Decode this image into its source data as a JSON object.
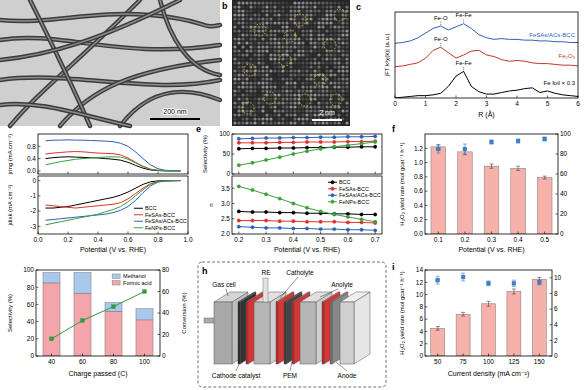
{
  "images": [
    {
      "scale_bar": "200 nm"
    },
    {
      "title": "b",
      "scale_bar": "2 nm"
    }
  ],
  "diagram": {
    "title": "h",
    "labels": [
      "Gas cell",
      "RE",
      "Catholyte",
      "PEM",
      "Anolyte",
      "Cathode catalyst",
      "Anode"
    ]
  },
  "chart_data": [
    {
      "type": "line",
      "title": "c",
      "xlabel": "R (Å)",
      "ylabel": "|FT k³χ(k)| (a.u.)",
      "x": [
        0,
        0.25,
        0.5,
        0.75,
        1,
        1.25,
        1.5,
        1.75,
        2,
        2.25,
        2.5,
        2.75,
        3,
        3.25,
        3.5,
        3.75,
        4,
        4.25,
        4.5,
        4.75,
        5,
        5.25,
        5.5,
        5.75,
        6
      ],
      "xlim": [
        0,
        6
      ],
      "xticks": [
        0,
        1,
        2,
        3,
        4,
        5,
        6
      ],
      "ylim": [
        0,
        11
      ],
      "tick_labels": "x",
      "series": [
        {
          "name": "FeSAs/ACs-BCC",
          "color": "#2e5fb8",
          "values": [
            7.0,
            7.1,
            7.3,
            7.7,
            8.3,
            8.9,
            9.2,
            8.7,
            9.1,
            9.5,
            8.9,
            8.1,
            7.7,
            7.5,
            7.6,
            7.5,
            7.5,
            7.4,
            7.4,
            7.3,
            7.3,
            7.2,
            7.2,
            7.1,
            7.1
          ]
        },
        {
          "name": "Fe₂O₃",
          "color": "#c0392b",
          "values": [
            4.0,
            4.1,
            4.3,
            4.5,
            5.1,
            6.1,
            6.5,
            5.8,
            5.1,
            5.5,
            6.0,
            6.1,
            5.5,
            5.3,
            4.9,
            4.7,
            4.8,
            4.7,
            4.5,
            4.4,
            4.4,
            4.3,
            4.2,
            4.2,
            4.1
          ]
        },
        {
          "name": "Fe foil × 0.3",
          "color": "#000000",
          "values": [
            0,
            0.1,
            0.2,
            0.3,
            0.3,
            0.4,
            0.6,
            1.5,
            2.8,
            3.4,
            1.5,
            0.8,
            0.5,
            0.5,
            0.7,
            0.9,
            1.0,
            1.2,
            1.3,
            0.7,
            0.9,
            0.6,
            0.4,
            0.3,
            0.2
          ]
        }
      ],
      "annotations": [
        {
          "text": "Fe-O",
          "x": 1.5,
          "y": 9.2
        },
        {
          "text": "Fe-Fe",
          "x": 2.25,
          "y": 9.5
        },
        {
          "text": "Fe-O",
          "x": 1.5,
          "y": 6.5
        },
        {
          "text": "Fe-Fe",
          "x": 2.25,
          "y": 3.4
        }
      ]
    },
    {
      "type": "line",
      "ylabel": "jring (mA cm⁻²)",
      "x": [
        0.05,
        0.1,
        0.15,
        0.2,
        0.25,
        0.3,
        0.35,
        0.4,
        0.45,
        0.5,
        0.55,
        0.6,
        0.65,
        0.7,
        0.75,
        0.8,
        0.85,
        0.9,
        0.95
      ],
      "xlim": [
        0,
        1
      ],
      "xticks": [
        0,
        0.2,
        0.4,
        0.6,
        0.8,
        1
      ],
      "ylim": [
        -0.1,
        1.2
      ],
      "yticks": [
        {
          "value": 0,
          "label": "0.0"
        },
        0.4,
        0.8
      ],
      "tick_labels": "y",
      "series": [
        {
          "color": "#000000",
          "values": [
            0.4,
            0.43,
            0.45,
            0.46,
            0.45,
            0.44,
            0.43,
            0.42,
            0.4,
            0.38,
            0.35,
            0.28,
            0.18,
            0.09,
            0.03,
            0.01,
            0,
            0,
            0
          ]
        },
        {
          "color": "#e0302a",
          "values": [
            0.55,
            0.58,
            0.6,
            0.62,
            0.63,
            0.62,
            0.6,
            0.58,
            0.57,
            0.56,
            0.52,
            0.42,
            0.28,
            0.15,
            0.06,
            0.02,
            0.01,
            0.01,
            0.01
          ]
        },
        {
          "color": "#2e5fb8",
          "values": [
            0.98,
            1.0,
            1.0,
            1.01,
            1.0,
            1.0,
            0.99,
            0.98,
            0.97,
            0.95,
            0.9,
            0.8,
            0.62,
            0.4,
            0.2,
            0.07,
            0.02,
            0.01,
            0.01
          ]
        },
        {
          "color": "#3aa03a",
          "values": [
            0.2,
            0.25,
            0.3,
            0.34,
            0.38,
            0.4,
            0.42,
            0.44,
            0.45,
            0.46,
            0.45,
            0.38,
            0.26,
            0.14,
            0.05,
            0.02,
            0.01,
            0,
            0
          ]
        }
      ]
    },
    {
      "type": "line",
      "xlabel": "Potential (V vs. RHE)",
      "ylabel": "jdisk (mA cm⁻²)",
      "x": [
        0.05,
        0.1,
        0.15,
        0.2,
        0.25,
        0.3,
        0.35,
        0.4,
        0.45,
        0.5,
        0.55,
        0.6,
        0.65,
        0.7,
        0.75,
        0.8,
        0.85,
        0.9,
        0.95
      ],
      "xlim": [
        0,
        1
      ],
      "xticks": [
        {
          "value": 0,
          "label": "0.0"
        },
        0.2,
        0.4,
        0.6,
        0.8,
        {
          "value": 1,
          "label": "1.0"
        }
      ],
      "ylim": [
        -3.5,
        0.3
      ],
      "yticks": [
        -3,
        -2,
        -1,
        0
      ],
      "legend": "lower right",
      "series": [
        {
          "name": "BCC",
          "color": "#000000",
          "values": [
            -1.8,
            -1.8,
            -1.75,
            -1.7,
            -1.6,
            -1.5,
            -1.4,
            -1.3,
            -1.2,
            -1.1,
            -0.95,
            -0.75,
            -0.5,
            -0.25,
            -0.08,
            -0.02,
            -0.01,
            0,
            0
          ]
        },
        {
          "name": "FeSAs-BCC",
          "color": "#e0302a",
          "values": [
            -1.6,
            -1.65,
            -1.7,
            -1.75,
            -1.8,
            -1.75,
            -1.7,
            -1.65,
            -1.6,
            -1.55,
            -1.45,
            -1.2,
            -0.85,
            -0.5,
            -0.2,
            -0.06,
            -0.02,
            -0.01,
            0
          ]
        },
        {
          "name": "FeSAs/ACs-BCC",
          "color": "#2e5fb8",
          "values": [
            -2.6,
            -2.55,
            -2.5,
            -2.45,
            -2.4,
            -2.35,
            -2.3,
            -2.25,
            -2.2,
            -2.1,
            -1.95,
            -1.7,
            -1.3,
            -0.8,
            -0.35,
            -0.1,
            -0.03,
            -0.01,
            0
          ]
        },
        {
          "name": "FeNPs-BCC",
          "color": "#3aa03a",
          "values": [
            -2.9,
            -2.8,
            -2.7,
            -2.6,
            -2.5,
            -2.4,
            -2.3,
            -2.2,
            -2.05,
            -1.9,
            -1.7,
            -1.4,
            -1.0,
            -0.6,
            -0.25,
            -0.08,
            -0.02,
            -0.01,
            0
          ]
        }
      ]
    },
    {
      "type": "line",
      "title": "e",
      "ylabel": "Selectivity (%)",
      "marker": "circle",
      "x": [
        0.2,
        0.25,
        0.3,
        0.35,
        0.4,
        0.45,
        0.5,
        0.55,
        0.6,
        0.65,
        0.7
      ],
      "xlim": [
        0.175,
        0.725
      ],
      "xticks": [
        0.2,
        0.3,
        0.4,
        0.5,
        0.6,
        0.7
      ],
      "ylim": [
        0,
        100
      ],
      "yticks": [
        0,
        50,
        100
      ],
      "tick_labels": "y",
      "series": [
        {
          "color": "#000000",
          "values": [
            63,
            64,
            64,
            65,
            65,
            66,
            66,
            67,
            67,
            68,
            68
          ]
        },
        {
          "color": "#e0302a",
          "values": [
            78,
            78,
            78,
            79,
            79,
            80,
            80,
            80,
            81,
            81,
            82
          ]
        },
        {
          "color": "#2e5fb8",
          "values": [
            88,
            89,
            90,
            90,
            91,
            91,
            92,
            92,
            93,
            93,
            94
          ]
        },
        {
          "color": "#3aa03a",
          "values": [
            22,
            28,
            35,
            42,
            50,
            57,
            63,
            68,
            72,
            76,
            80
          ]
        }
      ]
    },
    {
      "type": "line",
      "xlabel": "Potential (V vs. RHE)",
      "ylabel": "n",
      "marker": "circle",
      "x": [
        0.2,
        0.25,
        0.3,
        0.35,
        0.4,
        0.45,
        0.5,
        0.55,
        0.6,
        0.65,
        0.7
      ],
      "xlim": [
        0.175,
        0.725
      ],
      "xticks": [
        0.2,
        0.3,
        0.4,
        0.5,
        0.6,
        0.7
      ],
      "ylim": [
        2.0,
        3.9
      ],
      "yticks": [
        {
          "value": 2,
          "label": "2.0"
        },
        2.5,
        {
          "value": 3,
          "label": "3.0"
        },
        3.5
      ],
      "legend": "upper right",
      "series": [
        {
          "name": "BCC",
          "color": "#000000",
          "values": [
            2.74,
            2.72,
            2.72,
            2.7,
            2.7,
            2.68,
            2.68,
            2.66,
            2.66,
            2.64,
            2.64
          ]
        },
        {
          "name": "FeSAs-BCC",
          "color": "#e0302a",
          "values": [
            2.44,
            2.44,
            2.44,
            2.42,
            2.42,
            2.4,
            2.4,
            2.4,
            2.38,
            2.38,
            2.36
          ]
        },
        {
          "name": "FeSAs/ACs-BCC",
          "color": "#2e5fb8",
          "values": [
            2.24,
            2.22,
            2.2,
            2.2,
            2.18,
            2.18,
            2.16,
            2.16,
            2.14,
            2.14,
            2.12
          ]
        },
        {
          "name": "FeNPs-BCC",
          "color": "#3aa03a",
          "values": [
            3.56,
            3.44,
            3.3,
            3.16,
            3.0,
            2.86,
            2.74,
            2.64,
            2.56,
            2.48,
            2.4
          ]
        }
      ]
    },
    {
      "type": "bar",
      "title": "f",
      "xlabel": "Potential (V vs. RHE)",
      "ylabel": "H₂O₂ yield rate (mol gcat⁻¹ h⁻¹)",
      "categories": [
        0.1,
        0.2,
        0.3,
        0.4,
        0.5
      ],
      "ylim": [
        0,
        1.4
      ],
      "yticks": [
        {
          "value": 0,
          "label": "0.0"
        },
        0.2,
        0.4,
        0.6,
        0.8,
        {
          "value": 1,
          "label": "1.0"
        },
        1.2
      ],
      "y2lim": [
        0,
        100
      ],
      "y2ticks": [
        0,
        20,
        40,
        60,
        80,
        100
      ],
      "series": [
        {
          "type": "bar",
          "color": "#f5b1aa",
          "values": [
            1.22,
            1.15,
            0.95,
            0.92,
            0.79
          ],
          "errors": [
            0.03,
            0.04,
            0.03,
            0.03,
            0.02
          ]
        },
        {
          "type": "scatter",
          "axis": "y2",
          "color": "#3d7fc4",
          "marker": "square",
          "values": [
            85,
            85,
            92,
            93,
            95
          ],
          "errors": [
            4,
            5,
            2,
            2,
            2
          ]
        }
      ]
    },
    {
      "type": "bar",
      "xlabel": "Charge passed (C)",
      "ylabel": "Selectivity (%)",
      "y2label": "Conversion (%)",
      "categories": [
        40,
        60,
        80,
        100
      ],
      "ylim": [
        0,
        100
      ],
      "yticks": [
        0,
        20,
        40,
        60,
        80,
        100
      ],
      "y2lim": [
        0,
        80
      ],
      "y2ticks": [
        0,
        20,
        40,
        60,
        80
      ],
      "stacked": true,
      "legend": "upper right",
      "series": [
        {
          "name": "Formic acid",
          "type": "bar",
          "color": "#f3a5ab",
          "values": [
            85,
            73,
            52,
            42
          ]
        },
        {
          "name": "Methanol",
          "type": "bar",
          "color": "#a9c8ec",
          "values": [
            12,
            24,
            10,
            13
          ]
        },
        {
          "type": "line",
          "axis": "y2",
          "color": "#2f9a3f",
          "marker": "square",
          "values": [
            16,
            33,
            46,
            60
          ]
        }
      ]
    },
    {
      "type": "bar",
      "title": "i",
      "xlabel": "Current density (mA cm⁻²)",
      "ylabel": "H₂O₂ yield rate (mol gcat⁻¹ h⁻¹)",
      "categories": [
        50,
        75,
        100,
        125,
        150
      ],
      "ylim": [
        0,
        14
      ],
      "yticks": [
        0,
        2,
        4,
        6,
        8,
        10,
        12,
        14
      ],
      "y2lim": [
        0,
        11
      ],
      "y2ticks": [
        0,
        2,
        4,
        6,
        8,
        10
      ],
      "series": [
        {
          "type": "bar",
          "color": "#f5b1aa",
          "values": [
            4.5,
            6.8,
            8.5,
            10.5,
            12.5
          ],
          "errors": [
            0.3,
            0.3,
            0.4,
            0.4,
            0.3
          ]
        },
        {
          "type": "scatter",
          "axis": "y2",
          "color": "#3d7fc4",
          "marker": "square",
          "values": [
            9.7,
            10.1,
            9.3,
            9.3,
            9.4
          ],
          "errors": [
            0.5,
            0.5,
            0.3,
            0.4,
            0.3
          ]
        }
      ]
    }
  ]
}
